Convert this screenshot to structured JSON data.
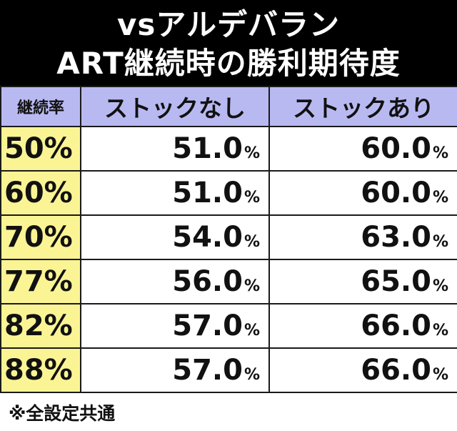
{
  "title": {
    "line1": "vsアルデバラン",
    "line2": "ART継続時の勝利期待度"
  },
  "table": {
    "headers": [
      "継続率",
      "ストックなし",
      "ストックあり"
    ],
    "rows": [
      {
        "rate": "50%",
        "no_stock": "51.0",
        "stock": "60.0"
      },
      {
        "rate": "60%",
        "no_stock": "51.0",
        "stock": "60.0"
      },
      {
        "rate": "70%",
        "no_stock": "54.0",
        "stock": "63.0"
      },
      {
        "rate": "77%",
        "no_stock": "56.0",
        "stock": "65.0"
      },
      {
        "rate": "82%",
        "no_stock": "57.0",
        "stock": "66.0"
      },
      {
        "rate": "88%",
        "no_stock": "57.0",
        "stock": "66.0"
      }
    ],
    "unit": "%"
  },
  "footnote": "※全設定共通",
  "colors": {
    "header_bg": "#000000",
    "column_header_bg": "#b9b9f2",
    "rate_cell_bg": "#fbf494"
  }
}
